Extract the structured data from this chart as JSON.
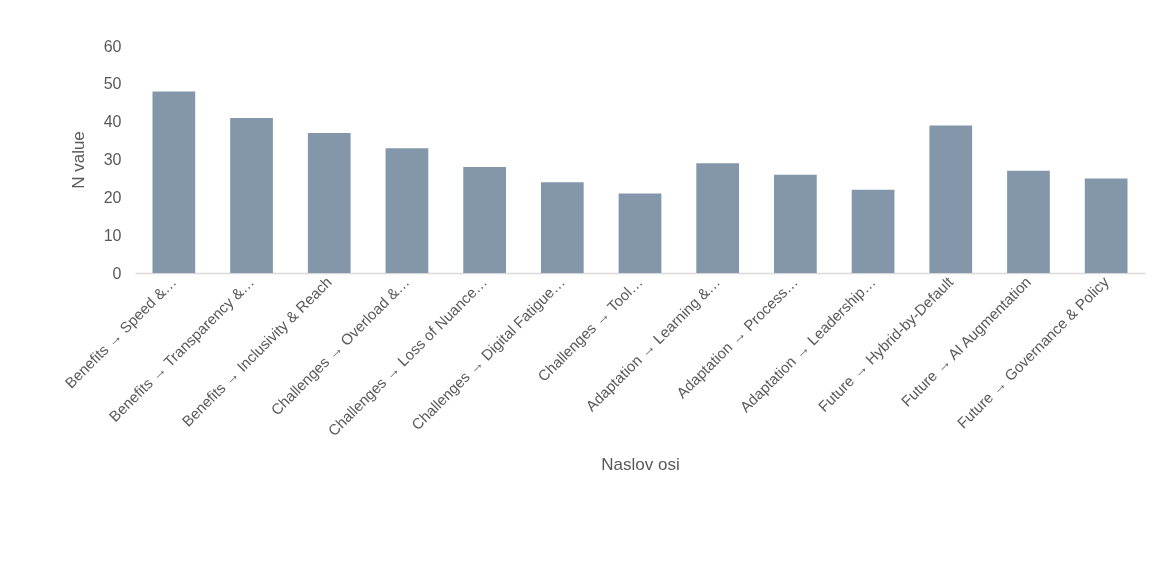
{
  "chart_data": {
    "type": "bar",
    "xlabel": "Naslov osi",
    "ylabel": "N value",
    "categories": [
      "Benefits → Speed &…",
      "Benefits → Transparency &…",
      "Benefits → Inclusivity & Reach",
      "Challenges → Overload &…",
      "Challenges → Loss of Nuance…",
      "Challenges → Digital Fatigue…",
      "Challenges → Tool…",
      "Adaptation → Learning &…",
      "Adaptation → Process…",
      "Adaptation → Leadership…",
      "Future → Hybrid-by-Default",
      "Future → AI Augmentation",
      "Future → Governance & Policy"
    ],
    "values": [
      48,
      41,
      37,
      33,
      28,
      24,
      21,
      29,
      26,
      22,
      39,
      27,
      25
    ],
    "color": "#8497aa",
    "ylim": [
      0,
      60
    ],
    "yticks": [
      0,
      10,
      20,
      30,
      40,
      50,
      60
    ],
    "grid": false
  }
}
